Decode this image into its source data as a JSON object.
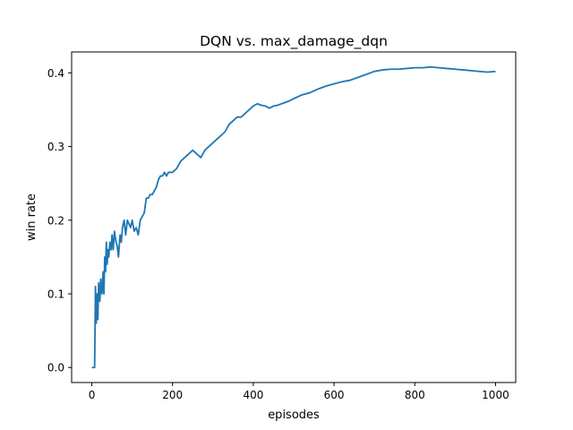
{
  "chart_data": {
    "type": "line",
    "title": "DQN vs. max_damage_dqn",
    "xlabel": "episodes",
    "ylabel": "win rate",
    "xlim": [
      -50,
      1050
    ],
    "ylim": [
      -0.0204,
      0.4284
    ],
    "xticks": [
      0,
      200,
      400,
      600,
      800,
      1000
    ],
    "xtick_labels": [
      "0",
      "200",
      "400",
      "600",
      "800",
      "1000"
    ],
    "yticks": [
      0.0,
      0.1,
      0.2,
      0.3,
      0.4
    ],
    "ytick_labels": [
      "0.0",
      "0.1",
      "0.2",
      "0.3",
      "0.4"
    ],
    "grid": false,
    "legend": "none",
    "line_color": "#1f77b4",
    "series": [
      {
        "x": [
          0,
          5,
          7,
          9,
          11,
          13,
          15,
          17,
          20,
          22,
          25,
          28,
          30,
          32,
          34,
          36,
          38,
          40,
          42,
          45,
          48,
          50,
          53,
          56,
          60,
          63,
          66,
          70,
          73,
          76,
          80,
          84,
          88,
          92,
          96,
          100,
          105,
          110,
          115,
          120,
          125,
          130,
          135,
          140,
          145,
          150,
          155,
          160,
          165,
          170,
          175,
          180,
          185,
          190,
          195,
          200,
          210,
          220,
          230,
          240,
          250,
          260,
          270,
          280,
          290,
          300,
          310,
          320,
          330,
          340,
          350,
          360,
          370,
          380,
          390,
          400,
          410,
          420,
          430,
          440,
          450,
          460,
          470,
          480,
          490,
          500,
          520,
          540,
          560,
          580,
          600,
          620,
          640,
          660,
          680,
          700,
          720,
          740,
          760,
          780,
          800,
          820,
          840,
          860,
          880,
          900,
          920,
          940,
          960,
          980,
          1000
        ],
        "y": [
          0.0,
          0.0,
          0.0,
          0.11,
          0.06,
          0.1,
          0.065,
          0.115,
          0.09,
          0.12,
          0.1,
          0.13,
          0.1,
          0.15,
          0.13,
          0.17,
          0.14,
          0.16,
          0.15,
          0.17,
          0.16,
          0.18,
          0.16,
          0.185,
          0.17,
          0.165,
          0.15,
          0.18,
          0.17,
          0.19,
          0.2,
          0.18,
          0.2,
          0.195,
          0.19,
          0.2,
          0.185,
          0.19,
          0.18,
          0.2,
          0.205,
          0.21,
          0.23,
          0.23,
          0.235,
          0.235,
          0.24,
          0.245,
          0.255,
          0.26,
          0.26,
          0.265,
          0.26,
          0.265,
          0.265,
          0.265,
          0.27,
          0.28,
          0.285,
          0.29,
          0.295,
          0.29,
          0.285,
          0.295,
          0.3,
          0.305,
          0.31,
          0.315,
          0.32,
          0.33,
          0.335,
          0.34,
          0.34,
          0.345,
          0.35,
          0.355,
          0.358,
          0.356,
          0.355,
          0.352,
          0.355,
          0.356,
          0.358,
          0.36,
          0.362,
          0.365,
          0.37,
          0.373,
          0.378,
          0.382,
          0.385,
          0.388,
          0.39,
          0.394,
          0.398,
          0.402,
          0.404,
          0.405,
          0.405,
          0.406,
          0.407,
          0.407,
          0.408,
          0.407,
          0.406,
          0.405,
          0.404,
          0.403,
          0.402,
          0.401,
          0.402
        ]
      }
    ]
  }
}
